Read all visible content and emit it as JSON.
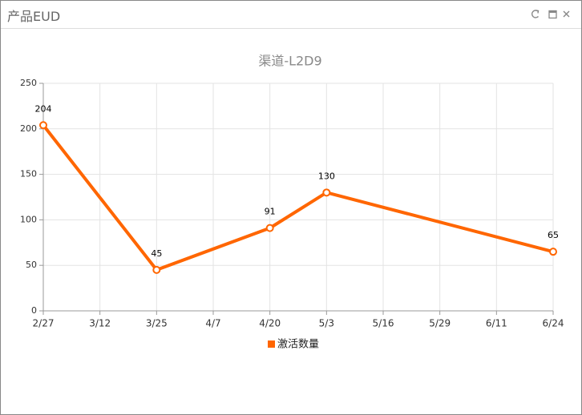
{
  "panel": {
    "title": "产品EUD"
  },
  "chart_data": {
    "type": "line",
    "title": "渠道-L2D9",
    "categories": [
      "2/27",
      "3/12",
      "3/25",
      "4/7",
      "4/20",
      "5/3",
      "5/16",
      "5/29",
      "6/11",
      "6/24"
    ],
    "series": [
      {
        "name": "激活数量",
        "color": "#ff6600",
        "x": [
          "2/27",
          "3/25",
          "4/20",
          "5/3",
          "6/24"
        ],
        "values": [
          204,
          45,
          91,
          130,
          65
        ]
      }
    ],
    "ylim": [
      0,
      250
    ],
    "yticks": [
      0,
      50,
      100,
      150,
      200,
      250
    ],
    "grid": true,
    "legend": "bottom"
  }
}
